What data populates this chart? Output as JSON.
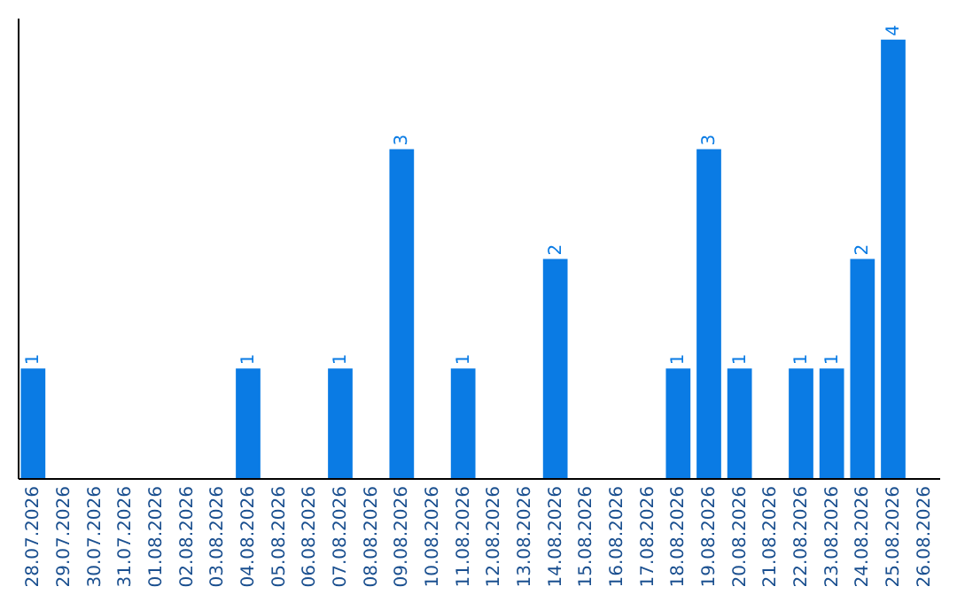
{
  "chart_data": {
    "type": "bar",
    "categories": [
      "28.07.2026",
      "29.07.2026",
      "30.07.2026",
      "31.07.2026",
      "01.08.2026",
      "02.08.2026",
      "03.08.2026",
      "04.08.2026",
      "05.08.2026",
      "06.08.2026",
      "07.08.2026",
      "08.08.2026",
      "09.08.2026",
      "10.08.2026",
      "11.08.2026",
      "12.08.2026",
      "13.08.2026",
      "14.08.2026",
      "15.08.2026",
      "16.08.2026",
      "17.08.2026",
      "18.08.2026",
      "19.08.2026",
      "20.08.2026",
      "21.08.2026",
      "22.08.2026",
      "23.08.2026",
      "24.08.2026",
      "25.08.2026",
      "26.08.2026"
    ],
    "values": [
      1,
      0,
      0,
      0,
      0,
      0,
      0,
      1,
      0,
      0,
      1,
      0,
      3,
      0,
      1,
      0,
      0,
      2,
      0,
      0,
      0,
      1,
      3,
      1,
      0,
      1,
      1,
      2,
      4,
      0
    ],
    "value_labels": [
      "1",
      null,
      null,
      null,
      null,
      null,
      null,
      "1",
      null,
      null,
      "1",
      null,
      "3",
      null,
      "1",
      null,
      null,
      "2",
      null,
      null,
      null,
      "1",
      "3",
      "1",
      null,
      "1",
      "1",
      "2",
      "4",
      null
    ],
    "color": "#0a7be4",
    "ylim": [
      0,
      4.2
    ],
    "tick_labels": "x",
    "grid": false
  }
}
